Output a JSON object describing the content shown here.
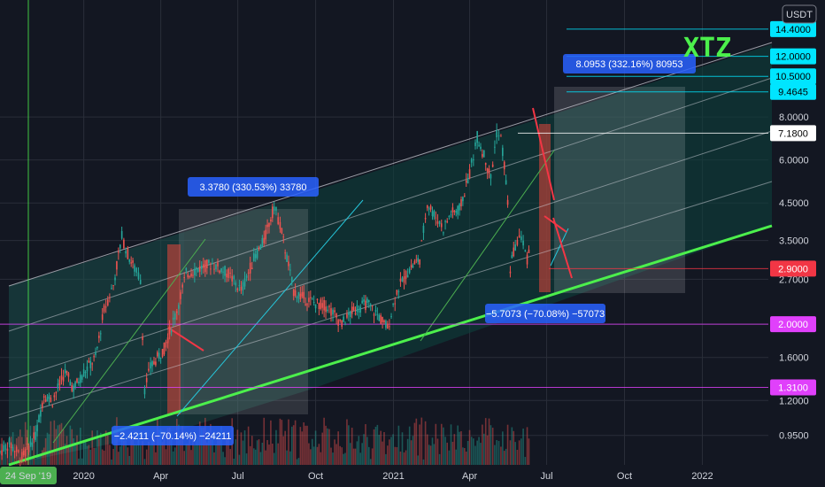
{
  "quote_currency": "USDT",
  "chart_data": {
    "type": "candlestick",
    "symbol": "XTZ",
    "quote": "USDT",
    "y_scale": "log",
    "ylim": [
      0.78,
      17.5
    ],
    "xlim": [
      "2019-09-24",
      "2022-03-20"
    ],
    "y_ticks": [
      "0.9500",
      "1.2000",
      "1.6000",
      "2.0000",
      "2.7000",
      "3.5000",
      "4.5000",
      "6.0000",
      "8.0000"
    ],
    "x_ticks": [
      {
        "label": "24 Sep '19",
        "date": "2019-09-24",
        "highlight": true
      },
      {
        "label": "2020",
        "date": "2020-01-01"
      },
      {
        "label": "Apr",
        "date": "2020-04-01"
      },
      {
        "label": "Jul",
        "date": "2020-07-01"
      },
      {
        "label": "Oct",
        "date": "2020-10-01"
      },
      {
        "label": "2021",
        "date": "2021-01-01"
      },
      {
        "label": "Apr",
        "date": "2021-04-01"
      },
      {
        "label": "Jul",
        "date": "2021-07-01"
      },
      {
        "label": "Oct",
        "date": "2021-10-01"
      },
      {
        "label": "2022",
        "date": "2022-01-01"
      }
    ],
    "price_levels": [
      {
        "label": "14.4000",
        "value": 14.4,
        "color": "#00e5ff",
        "text_color": "#000000"
      },
      {
        "label": "12.0000",
        "value": 12.0,
        "color": "#00e5ff",
        "text_color": "#000000"
      },
      {
        "label": "10.5000",
        "value": 10.5,
        "color": "#00e5ff",
        "text_color": "#000000"
      },
      {
        "label": "9.4645",
        "value": 9.4645,
        "color": "#00e5ff",
        "text_color": "#000000"
      },
      {
        "label": "7.1800",
        "value": 7.18,
        "color": "#ffffff",
        "text_color": "#000000"
      },
      {
        "label": "2.9000",
        "value": 2.9,
        "color": "#f23645",
        "text_color": "#ffffff"
      },
      {
        "label": "2.0000",
        "value": 2.0,
        "color": "#e040fb",
        "text_color": "#ffffff"
      },
      {
        "label": "1.3100",
        "value": 1.31,
        "color": "#e040fb",
        "text_color": "#ffffff"
      }
    ],
    "measurements": [
      {
        "label": "3.3780 (330.53%) 33780",
        "kind": "rise"
      },
      {
        "label": "−2.4211 (−70.14%) −24211",
        "kind": "fall"
      },
      {
        "label": "8.0953 (332.16%) 80953",
        "kind": "rise"
      },
      {
        "label": "−5.7073 (−70.08%) −57073",
        "kind": "fall"
      }
    ],
    "price_path": [
      [
        "2019-09-24",
        0.85
      ],
      [
        "2019-10-05",
        0.9
      ],
      [
        "2019-10-20",
        0.82
      ],
      [
        "2019-11-05",
        0.95
      ],
      [
        "2019-11-15",
        1.25
      ],
      [
        "2019-11-25",
        1.2
      ],
      [
        "2019-12-10",
        1.45
      ],
      [
        "2019-12-20",
        1.3
      ],
      [
        "2020-01-01",
        1.45
      ],
      [
        "2020-01-15",
        1.6
      ],
      [
        "2020-01-25",
        2.2
      ],
      [
        "2020-02-05",
        2.6
      ],
      [
        "2020-02-15",
        3.6
      ],
      [
        "2020-02-22",
        3.2
      ],
      [
        "2020-03-01",
        2.9
      ],
      [
        "2020-03-08",
        2.7
      ],
      [
        "2020-03-13",
        1.3
      ],
      [
        "2020-03-20",
        1.5
      ],
      [
        "2020-04-05",
        1.7
      ],
      [
        "2020-04-20",
        2.2
      ],
      [
        "2020-05-01",
        2.8
      ],
      [
        "2020-05-15",
        2.9
      ],
      [
        "2020-06-01",
        3.0
      ],
      [
        "2020-06-20",
        2.8
      ],
      [
        "2020-07-05",
        2.5
      ],
      [
        "2020-07-20",
        3.1
      ],
      [
        "2020-08-01",
        3.5
      ],
      [
        "2020-08-13",
        4.4
      ],
      [
        "2020-08-20",
        3.9
      ],
      [
        "2020-09-05",
        2.5
      ],
      [
        "2020-09-15",
        2.4
      ],
      [
        "2020-10-01",
        2.3
      ],
      [
        "2020-10-15",
        2.25
      ],
      [
        "2020-11-01",
        2.0
      ],
      [
        "2020-11-15",
        2.2
      ],
      [
        "2020-12-01",
        2.3
      ],
      [
        "2020-12-15",
        2.1
      ],
      [
        "2020-12-25",
        1.95
      ],
      [
        "2021-01-05",
        2.5
      ],
      [
        "2021-01-20",
        2.9
      ],
      [
        "2021-02-01",
        3.1
      ],
      [
        "2021-02-10",
        4.5
      ],
      [
        "2021-02-20",
        4.1
      ],
      [
        "2021-03-01",
        3.8
      ],
      [
        "2021-03-10",
        4.2
      ],
      [
        "2021-03-20",
        4.3
      ],
      [
        "2021-04-01",
        5.5
      ],
      [
        "2021-04-10",
        7.0
      ],
      [
        "2021-04-20",
        6.0
      ],
      [
        "2021-04-26",
        5.3
      ],
      [
        "2021-05-03",
        7.2
      ],
      [
        "2021-05-08",
        6.9
      ],
      [
        "2021-05-12",
        5.8
      ],
      [
        "2021-05-16",
        4.5
      ],
      [
        "2021-05-19",
        2.9
      ],
      [
        "2021-05-25",
        3.4
      ],
      [
        "2021-06-01",
        3.6
      ],
      [
        "2021-06-08",
        3.1
      ],
      [
        "2021-06-12",
        3.3
      ]
    ]
  }
}
